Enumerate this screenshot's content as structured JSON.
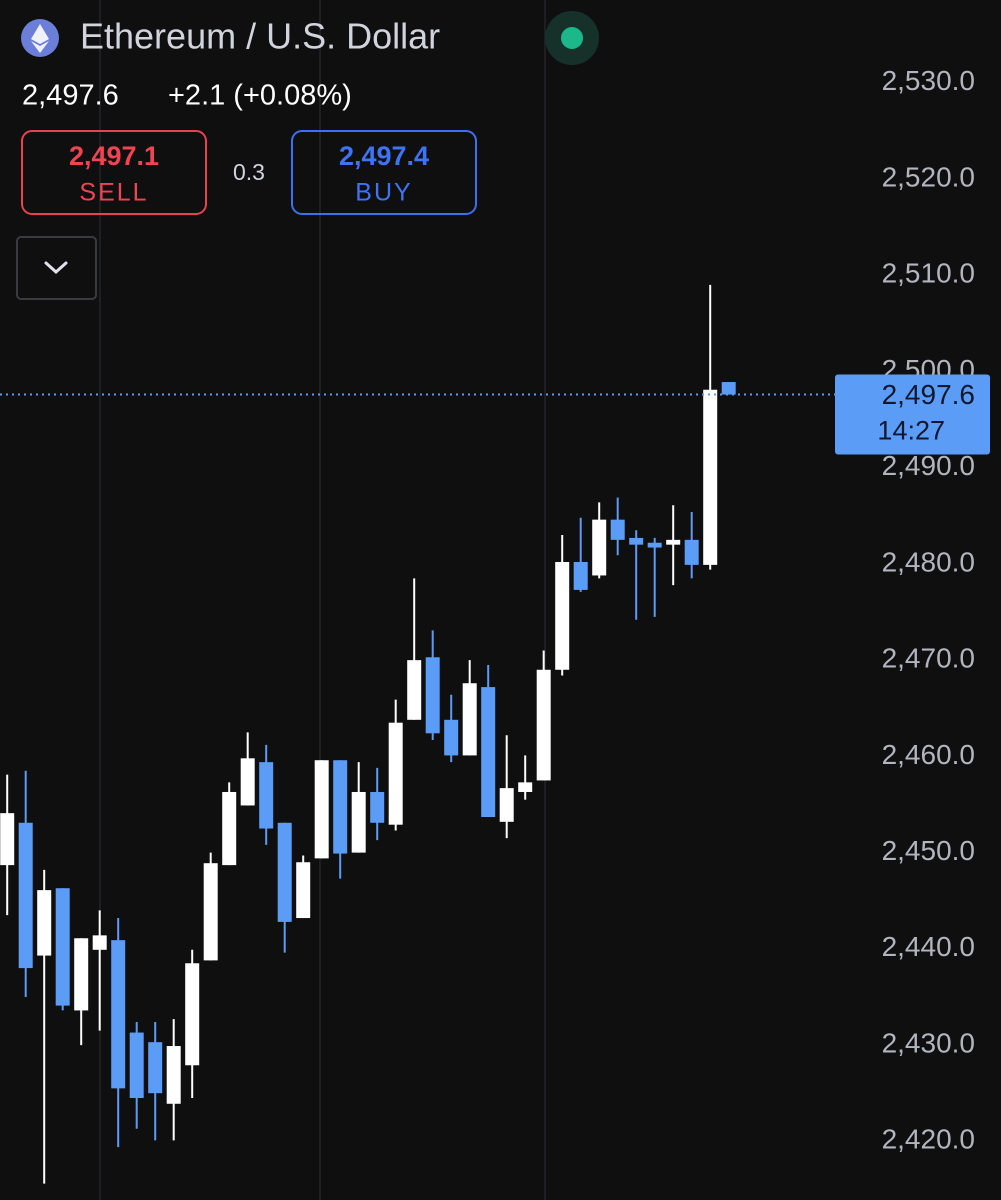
{
  "header": {
    "title": "Ethereum / U.S. Dollar",
    "price": "2,497.6",
    "change": "+2.1 (+0.08%)",
    "sell_price": "2,497.1",
    "sell_label": "SELL",
    "spread": "0.3",
    "buy_price": "2,497.4",
    "buy_label": "BUY"
  },
  "chart_data": {
    "type": "candlestick",
    "open": [
      2448.7,
      2453.1,
      2439.3,
      2446.3,
      2433.6,
      2439.9,
      2440.9,
      2431.3,
      2430.3,
      2423.9,
      2427.9,
      2438.8,
      2448.7,
      2454.9,
      2459.4,
      2453.1,
      2443.2,
      2449.4,
      2459.6,
      2450.0,
      2456.3,
      2452.9,
      2463.8,
      2470.3,
      2463.8,
      2460.1,
      2467.2,
      2453.2,
      2456.3,
      2457.5,
      2469.0,
      2480.2,
      2478.8,
      2484.6,
      2482.7,
      2482.2,
      2482.0,
      2482.5,
      2479.9,
      2498.9
    ],
    "high": [
      2458.1,
      2458.5,
      2448.2,
      2446.3,
      2441.1,
      2444.0,
      2443.2,
      2432.4,
      2432.4,
      2432.7,
      2439.9,
      2450.0,
      2457.3,
      2462.5,
      2461.2,
      2453.1,
      2449.7,
      2459.6,
      2459.6,
      2459.4,
      2458.8,
      2465.9,
      2478.5,
      2473.1,
      2466.4,
      2470.0,
      2469.5,
      2462.2,
      2460.1,
      2471.0,
      2483.0,
      2484.8,
      2486.4,
      2486.9,
      2483.5,
      2482.7,
      2486.1,
      2485.4,
      2509.0,
      2498.9
    ],
    "low": [
      2443.5,
      2435.0,
      2415.6,
      2433.6,
      2430.0,
      2431.5,
      2419.4,
      2421.3,
      2420.1,
      2420.1,
      2424.5,
      2438.8,
      2448.7,
      2454.9,
      2450.8,
      2439.6,
      2443.2,
      2449.4,
      2447.3,
      2450.0,
      2451.3,
      2452.3,
      2463.8,
      2461.7,
      2459.4,
      2460.1,
      2453.7,
      2451.5,
      2455.5,
      2457.5,
      2468.4,
      2477.1,
      2478.5,
      2480.9,
      2474.2,
      2474.5,
      2477.8,
      2478.5,
      2479.4,
      2497.6
    ],
    "close": [
      2454.1,
      2438.0,
      2446.1,
      2434.1,
      2441.1,
      2441.4,
      2425.5,
      2424.5,
      2425.0,
      2429.9,
      2438.5,
      2448.9,
      2456.3,
      2459.8,
      2452.5,
      2442.8,
      2449.0,
      2459.6,
      2449.9,
      2456.3,
      2453.1,
      2463.5,
      2470.0,
      2462.4,
      2460.1,
      2467.6,
      2453.7,
      2456.7,
      2457.3,
      2469.0,
      2480.2,
      2477.3,
      2484.6,
      2482.5,
      2482.0,
      2481.7,
      2482.5,
      2479.9,
      2498.1,
      2497.6
    ],
    "up_color": "#ffffff",
    "down_color": "#5b9cf6",
    "ylim": [
      2413.9,
      2538.6
    ],
    "yticks": [
      {
        "value": 2420,
        "label": "2,420.0"
      },
      {
        "value": 2430,
        "label": "2,430.0"
      },
      {
        "value": 2440,
        "label": "2,440.0"
      },
      {
        "value": 2450,
        "label": "2,450.0"
      },
      {
        "value": 2460,
        "label": "2,460.0"
      },
      {
        "value": 2470,
        "label": "2,470.0"
      },
      {
        "value": 2480,
        "label": "2,480.0"
      },
      {
        "value": 2490,
        "label": "2,490.0"
      },
      {
        "value": 2500,
        "label": "2,500.0"
      },
      {
        "value": 2510,
        "label": "2,510.0"
      },
      {
        "value": 2520,
        "label": "2,520.0"
      },
      {
        "value": 2530,
        "label": "2,530.0"
      }
    ],
    "last_price": {
      "value": 2497.6,
      "label": "2,497.6"
    },
    "countdown": "14:27"
  }
}
